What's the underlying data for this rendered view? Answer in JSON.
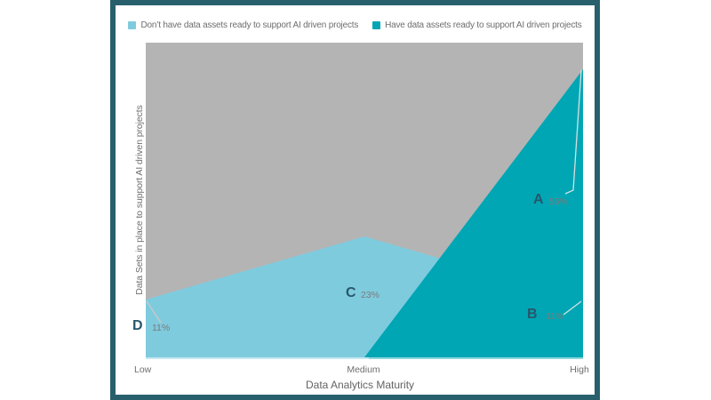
{
  "chart_data": {
    "type": "area",
    "title": "",
    "x": [
      "Low",
      "Medium",
      "High"
    ],
    "xlabel": "Data Analytics Maturity",
    "ylabel": "Data Sets in place to support AI driven projects",
    "legend_position": "top",
    "grid": false,
    "plot_background": "#b4b4b4",
    "series": [
      {
        "name": "Don’t have data assets ready to support AI driven projects",
        "color": "#7fcbde",
        "values_pct": [
          11,
          23,
          11
        ]
      },
      {
        "name": "Have data assets ready to support AI driven projects",
        "color": "#00a6b4",
        "values_pct": [
          0,
          0,
          55
        ]
      }
    ],
    "annotations": [
      {
        "letter": "A",
        "value": "55%",
        "series": "Have data assets ready to support AI driven projects",
        "x": "High"
      },
      {
        "letter": "B",
        "value": "11%",
        "series": "Don’t have data assets ready to support AI driven projects",
        "x": "High"
      },
      {
        "letter": "C",
        "value": "23%",
        "series": "Don’t have data assets ready to support AI driven projects",
        "x": "Medium"
      },
      {
        "letter": "D",
        "value": "11%",
        "series": "Don’t have data assets ready to support AI driven projects",
        "x": "Low"
      }
    ]
  },
  "frame_color": "#27606c"
}
